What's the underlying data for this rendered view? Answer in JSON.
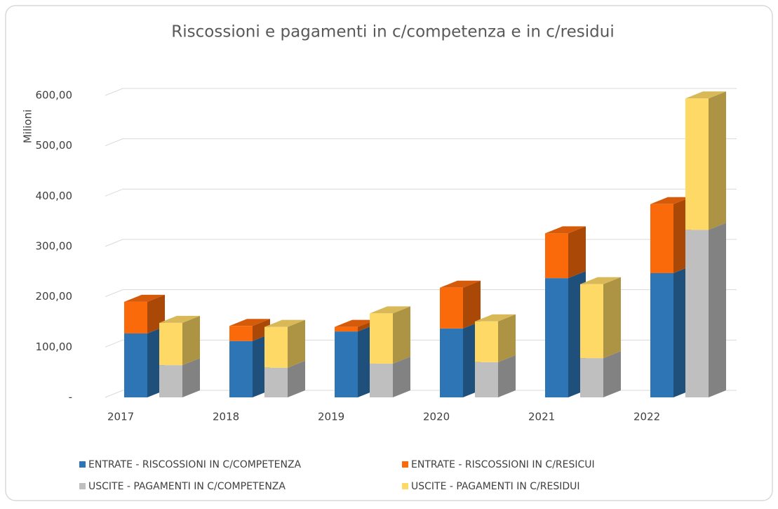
{
  "chart_data": {
    "type": "bar",
    "title": "Riscossioni e pagamenti in c/competenza e in c/residui",
    "y_label": "Milioni",
    "categories": [
      "2017",
      "2018",
      "2019",
      "2020",
      "2021",
      "2022"
    ],
    "series": [
      {
        "name": "ENTRATE - RISCOSSIONI IN C/COMPETENZA",
        "color": "#2e75b6",
        "stack": 0,
        "values": [
          127,
          112,
          131,
          137,
          237,
          247
        ]
      },
      {
        "name": "ENTRATE - RISCOSSIONI IN C/RESICUI",
        "color": "#fa6a0a",
        "stack": 0,
        "values": [
          63,
          30,
          9,
          81,
          89,
          137
        ]
      },
      {
        "name": "USCITE  - PAGAMENTI IN C/COMPETENZA",
        "color": "#bfbfbf",
        "stack": 1,
        "values": [
          64,
          59,
          67,
          70,
          78,
          333
        ]
      },
      {
        "name": "USCITE  - PAGAMENTI IN C/RESIDUI",
        "color": "#ffd966",
        "stack": 1,
        "values": [
          84,
          81,
          100,
          81,
          147,
          261
        ]
      }
    ],
    "ylim": [
      0,
      600
    ],
    "yticks": [
      {
        "value": 0,
        "label": "-"
      },
      {
        "value": 100,
        "label": "100,00"
      },
      {
        "value": 200,
        "label": "200,00"
      },
      {
        "value": 300,
        "label": "300,00"
      },
      {
        "value": 400,
        "label": "400,00"
      },
      {
        "value": 500,
        "label": "500,00"
      },
      {
        "value": 600,
        "label": "600,00"
      }
    ],
    "grid": true
  }
}
